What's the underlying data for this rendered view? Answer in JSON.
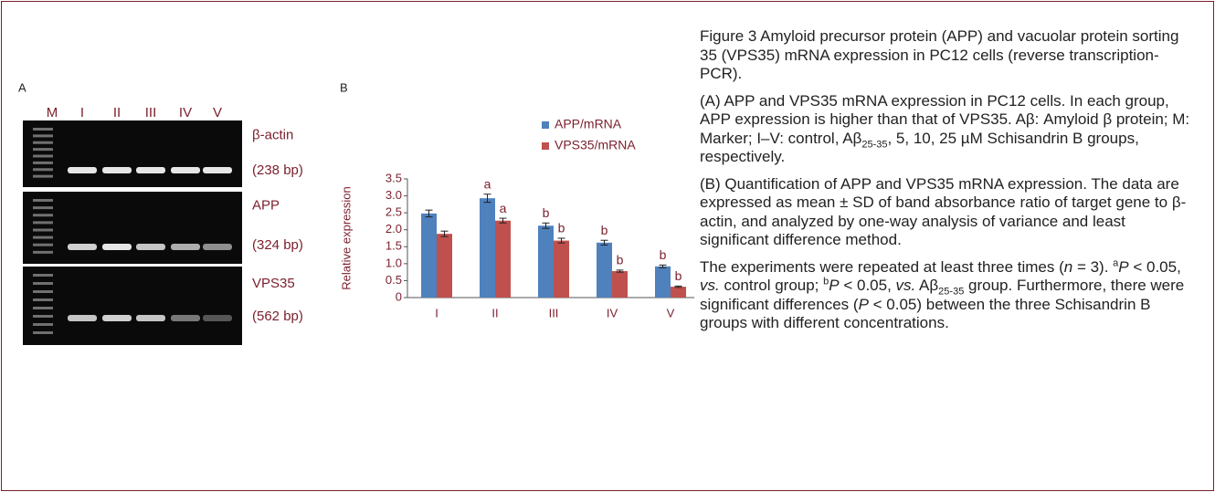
{
  "panel_a": {
    "label": "A",
    "lanes": [
      "M",
      "I",
      "II",
      "III",
      "IV",
      "V"
    ],
    "genes": [
      {
        "name": "β-actin",
        "size": "(238 bp)"
      },
      {
        "name": "APP",
        "size": "(324 bp)"
      },
      {
        "name": "VPS35",
        "size": "(562 bp)"
      }
    ]
  },
  "chart_data": {
    "type": "bar",
    "panel_label": "B",
    "y_label": "Relative expression",
    "categories": [
      "I",
      "II",
      "III",
      "IV",
      "V"
    ],
    "ylim": [
      0,
      3.5
    ],
    "yticks": [
      0,
      0.5,
      {
        "value": 1,
        "label": "1.0"
      },
      1.5,
      {
        "value": 2,
        "label": "2.0"
      },
      2.5,
      {
        "value": 3,
        "label": "3.0"
      },
      3.5
    ],
    "series": [
      {
        "name": "APP/mRNA",
        "color": "#4f81bd",
        "values": [
          2.48,
          2.93,
          2.12,
          1.62,
          0.92
        ],
        "errors": [
          0.1,
          0.12,
          0.08,
          0.07,
          0.04
        ],
        "significance": [
          null,
          "a",
          "b",
          "b",
          "b"
        ]
      },
      {
        "name": "VPS35/mRNA",
        "color": "#c0504d",
        "values": [
          1.88,
          2.27,
          1.68,
          0.78,
          0.32
        ],
        "errors": [
          0.08,
          0.07,
          0.07,
          0.03,
          0.02
        ],
        "significance": [
          null,
          "a",
          "b",
          "b",
          "b"
        ]
      }
    ]
  },
  "caption": {
    "paragraphs": [
      [
        "Figure 3   Amyloid precursor protein (APP) and vacuolar protein sorting 35 (VPS35) mRNA expression in PC12 cells (reverse transcription-PCR)."
      ],
      [
        "(A) APP and VPS35 mRNA expression in PC12 cells. In each group, APP expression is higher than that of VPS35. Aβ: Amyloid β protein; M: Marker; I–V: control, Aβ",
        "25-35",
        ", 5, 10, 25 µM Schisandrin B groups, respectively."
      ],
      [
        "(B) Quantification of APP and VPS35 mRNA expression. The data are expressed as mean ± SD of band absorbance ratio of target gene to β-actin, and analyzed by one-way analysis of variance and least significant difference method."
      ],
      [
        "The experiments were repeated at least three times (",
        "n",
        " = 3). ",
        "a",
        "P",
        " < 0.05, ",
        "vs.",
        " control group; ",
        "b",
        "P",
        " < 0.05, ",
        "vs.",
        " Aβ",
        "25-35",
        " group. Furthermore, there were significant differences (",
        "P",
        " < 0.05) between the three Schisandrin B groups with different concentrations."
      ]
    ]
  }
}
